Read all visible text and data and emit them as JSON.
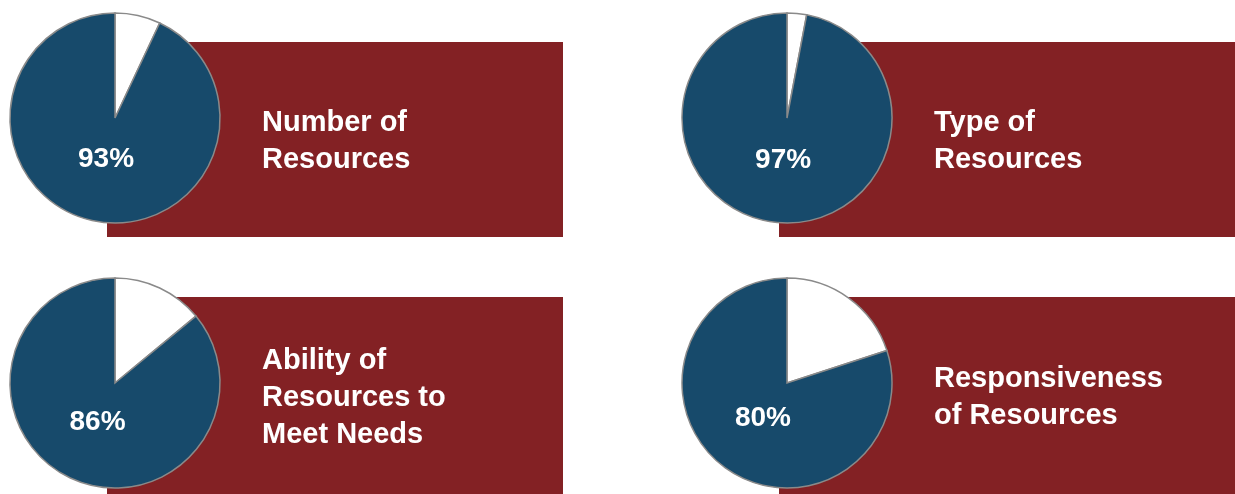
{
  "chart_data": [
    {
      "type": "pie",
      "title": "Number of Resources",
      "categories": [
        null,
        null
      ],
      "values": [
        7,
        93
      ],
      "colors": [
        "#ffffff",
        "#174a6b"
      ],
      "value_labels": [
        null,
        "93%"
      ]
    },
    {
      "type": "pie",
      "title": "Type of Resources",
      "categories": [
        null,
        null
      ],
      "values": [
        3,
        97
      ],
      "colors": [
        "#ffffff",
        "#174a6b"
      ],
      "value_labels": [
        null,
        "97%"
      ]
    },
    {
      "type": "pie",
      "title": "Ability of Resources to Meet Needs",
      "categories": [
        null,
        null
      ],
      "values": [
        14,
        86
      ],
      "colors": [
        "#ffffff",
        "#174a6b"
      ],
      "value_labels": [
        null,
        "86%"
      ]
    },
    {
      "type": "pie",
      "title": "Responsiveness of Resources",
      "categories": [
        null,
        null
      ],
      "values": [
        20,
        80
      ],
      "colors": [
        "#ffffff",
        "#174a6b"
      ],
      "value_labels": [
        null,
        "80%"
      ]
    }
  ]
}
